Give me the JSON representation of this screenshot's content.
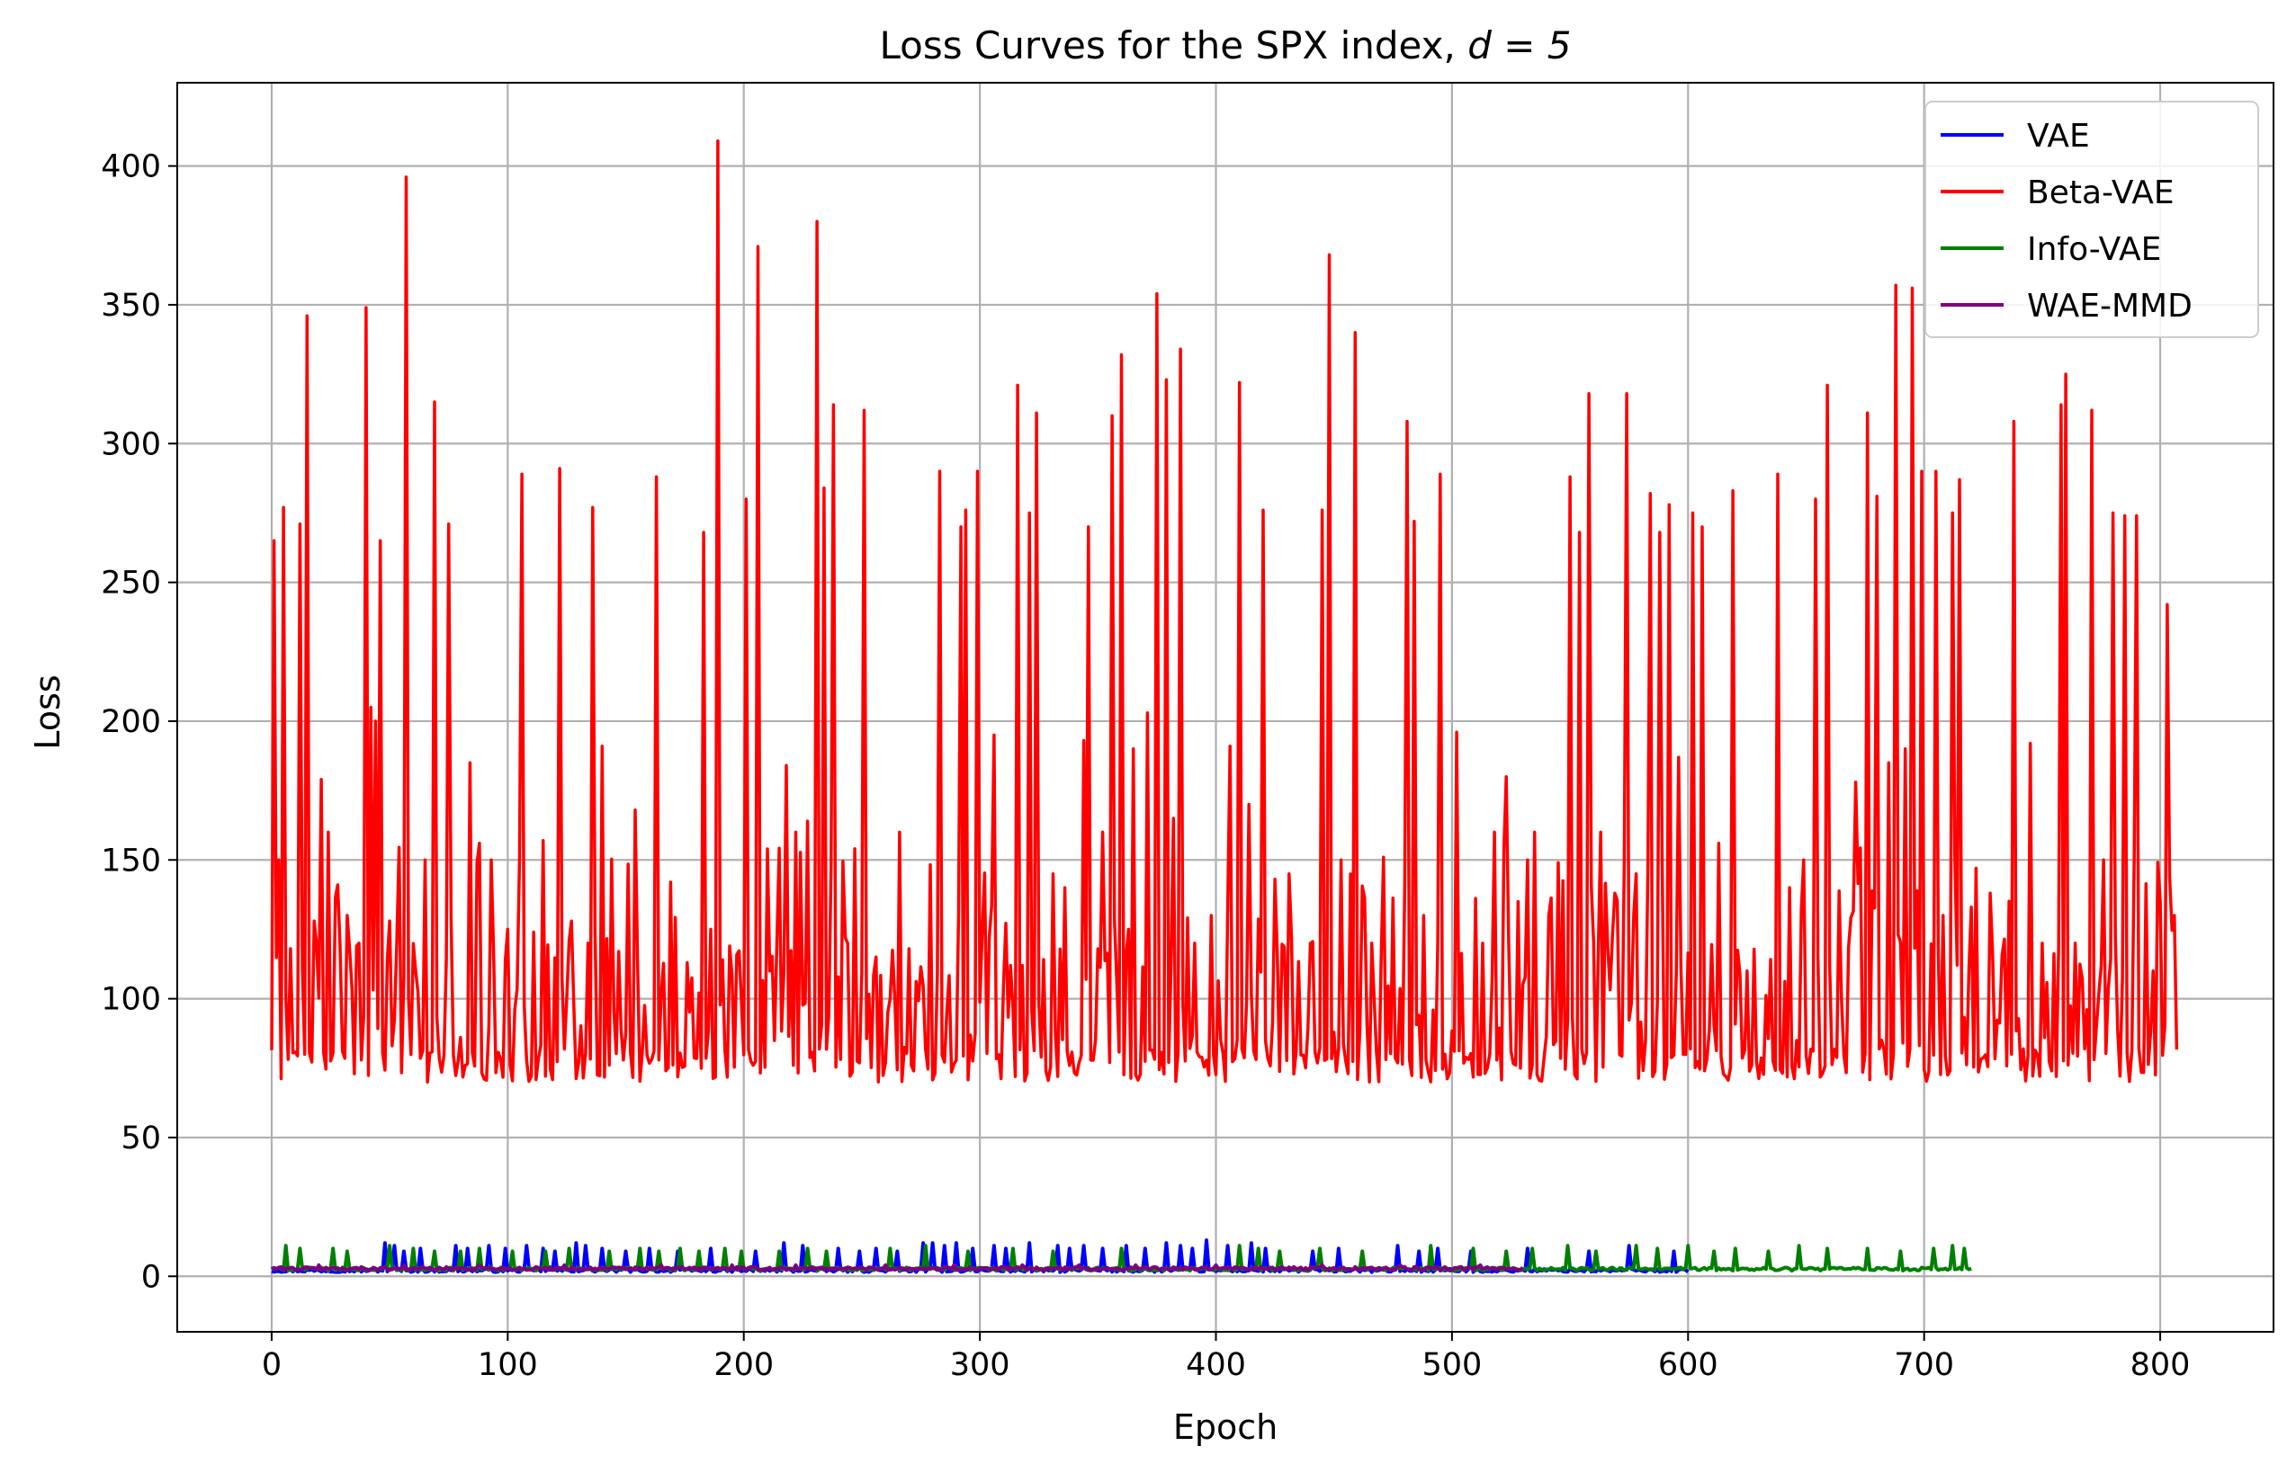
{
  "chart_data": {
    "type": "line",
    "title": "Loss Curves for the SPX index, ",
    "title_math": "d = 5",
    "xlabel": "Epoch",
    "ylabel": "Loss",
    "xlim": [
      -40,
      848
    ],
    "ylim": [
      -20,
      430
    ],
    "xticks": [
      0,
      100,
      200,
      300,
      400,
      500,
      600,
      700,
      800
    ],
    "yticks": [
      0,
      50,
      100,
      150,
      200,
      250,
      300,
      350,
      400
    ],
    "grid": true,
    "legend_position": "top-right",
    "series": [
      {
        "name": "VAE",
        "color": "#0000ff",
        "x_end": 600,
        "baseline": 1.5,
        "spikes": [
          [
            48,
            12
          ],
          [
            52,
            11
          ],
          [
            56,
            9
          ],
          [
            63,
            10
          ],
          [
            78,
            11
          ],
          [
            83,
            10
          ],
          [
            92,
            11
          ],
          [
            99,
            10
          ],
          [
            108,
            11
          ],
          [
            115,
            10
          ],
          [
            120,
            9
          ],
          [
            129,
            12
          ],
          [
            133,
            11
          ],
          [
            140,
            10
          ],
          [
            150,
            9
          ],
          [
            160,
            10
          ],
          [
            172,
            9
          ],
          [
            186,
            10
          ],
          [
            205,
            9
          ],
          [
            217,
            12
          ],
          [
            225,
            11
          ],
          [
            240,
            10
          ],
          [
            249,
            9
          ],
          [
            256,
            10
          ],
          [
            265,
            9
          ],
          [
            276,
            12
          ],
          [
            280,
            12
          ],
          [
            285,
            11
          ],
          [
            290,
            12
          ],
          [
            297,
            10
          ],
          [
            306,
            11
          ],
          [
            311,
            10
          ],
          [
            321,
            12
          ],
          [
            333,
            11
          ],
          [
            338,
            10
          ],
          [
            344,
            11
          ],
          [
            352,
            10
          ],
          [
            362,
            11
          ],
          [
            370,
            10
          ],
          [
            379,
            12
          ],
          [
            385,
            11
          ],
          [
            390,
            10
          ],
          [
            396,
            13
          ],
          [
            405,
            11
          ],
          [
            415,
            12
          ],
          [
            421,
            10
          ],
          [
            441,
            9
          ],
          [
            452,
            10
          ],
          [
            477,
            11
          ],
          [
            486,
            9
          ],
          [
            494,
            10
          ],
          [
            508,
            9
          ],
          [
            532,
            10
          ],
          [
            558,
            9
          ],
          [
            575,
            11
          ],
          [
            594,
            9
          ]
        ]
      },
      {
        "name": "Beta-VAE",
        "color": "#ff0000",
        "x_end": 807,
        "baseline": 75,
        "spikes": [
          [
            1,
            265
          ],
          [
            3,
            150
          ],
          [
            5,
            277
          ],
          [
            8,
            118
          ],
          [
            12,
            271
          ],
          [
            15,
            346
          ],
          [
            18,
            128
          ],
          [
            21,
            179
          ],
          [
            24,
            160
          ],
          [
            28,
            141
          ],
          [
            32,
            130
          ],
          [
            37,
            120
          ],
          [
            40,
            349
          ],
          [
            42,
            205
          ],
          [
            44,
            200
          ],
          [
            46,
            265
          ],
          [
            50,
            128
          ],
          [
            57,
            396
          ],
          [
            61,
            110
          ],
          [
            65,
            150
          ],
          [
            69,
            315
          ],
          [
            75,
            271
          ],
          [
            80,
            86
          ],
          [
            84,
            185
          ],
          [
            88,
            156
          ],
          [
            93,
            150
          ],
          [
            100,
            125
          ],
          [
            106,
            289
          ],
          [
            111,
            124
          ],
          [
            115,
            157
          ],
          [
            122,
            291
          ],
          [
            127,
            128
          ],
          [
            134,
            120
          ],
          [
            136,
            277
          ],
          [
            140,
            191
          ],
          [
            147,
            117
          ],
          [
            154,
            168
          ],
          [
            163,
            288
          ],
          [
            169,
            142
          ],
          [
            176,
            113
          ],
          [
            183,
            268
          ],
          [
            186,
            125
          ],
          [
            189,
            409
          ],
          [
            194,
            119
          ],
          [
            201,
            280
          ],
          [
            206,
            371
          ],
          [
            214,
            120
          ],
          [
            218,
            184
          ],
          [
            222,
            160
          ],
          [
            227,
            164
          ],
          [
            231,
            380
          ],
          [
            234,
            284
          ],
          [
            238,
            314
          ],
          [
            244,
            120
          ],
          [
            247,
            154
          ],
          [
            251,
            312
          ],
          [
            256,
            115
          ],
          [
            262,
            100
          ],
          [
            266,
            160
          ],
          [
            270,
            118
          ],
          [
            283,
            290
          ],
          [
            292,
            270
          ],
          [
            294,
            276
          ],
          [
            299,
            290
          ],
          [
            306,
            195
          ],
          [
            313,
            112
          ],
          [
            316,
            321
          ],
          [
            321,
            275
          ],
          [
            324,
            311
          ],
          [
            331,
            145
          ],
          [
            336,
            140
          ],
          [
            344,
            193
          ],
          [
            346,
            270
          ],
          [
            352,
            160
          ],
          [
            356,
            310
          ],
          [
            360,
            332
          ],
          [
            365,
            190
          ],
          [
            371,
            203
          ],
          [
            375,
            354
          ],
          [
            379,
            323
          ],
          [
            382,
            165
          ],
          [
            385,
            334
          ],
          [
            391,
            120
          ],
          [
            398,
            130
          ],
          [
            406,
            191
          ],
          [
            410,
            322
          ],
          [
            414,
            170
          ],
          [
            420,
            276
          ],
          [
            431,
            145
          ],
          [
            440,
            120
          ],
          [
            445,
            276
          ],
          [
            448,
            368
          ],
          [
            453,
            150
          ],
          [
            459,
            340
          ],
          [
            466,
            120
          ],
          [
            471,
            151
          ],
          [
            481,
            308
          ],
          [
            484,
            272
          ],
          [
            488,
            130
          ],
          [
            495,
            289
          ],
          [
            502,
            196
          ],
          [
            513,
            120
          ],
          [
            518,
            160
          ],
          [
            523,
            180
          ],
          [
            528,
            135
          ],
          [
            532,
            150
          ],
          [
            535,
            160
          ],
          [
            541,
            130
          ],
          [
            545,
            149
          ],
          [
            550,
            288
          ],
          [
            554,
            268
          ],
          [
            558,
            318
          ],
          [
            563,
            160
          ],
          [
            569,
            138
          ],
          [
            574,
            318
          ],
          [
            578,
            145
          ],
          [
            584,
            282
          ],
          [
            588,
            268
          ],
          [
            592,
            278
          ],
          [
            596,
            187
          ],
          [
            602,
            275
          ],
          [
            606,
            270
          ],
          [
            613,
            156
          ],
          [
            619,
            283
          ],
          [
            625,
            110
          ],
          [
            638,
            289
          ],
          [
            643,
            140
          ],
          [
            649,
            150
          ],
          [
            654,
            280
          ],
          [
            659,
            321
          ],
          [
            665,
            100
          ],
          [
            671,
            178
          ],
          [
            676,
            311
          ],
          [
            680,
            281
          ],
          [
            685,
            185
          ],
          [
            688,
            357
          ],
          [
            692,
            190
          ],
          [
            695,
            356
          ],
          [
            699,
            290
          ],
          [
            705,
            290
          ],
          [
            708,
            130
          ],
          [
            712,
            275
          ],
          [
            715,
            287
          ],
          [
            722,
            147
          ],
          [
            728,
            138
          ],
          [
            738,
            308
          ],
          [
            745,
            192
          ],
          [
            750,
            120
          ],
          [
            758,
            314
          ],
          [
            760,
            325
          ],
          [
            764,
            120
          ],
          [
            771,
            312
          ],
          [
            776,
            150
          ],
          [
            780,
            275
          ],
          [
            785,
            274
          ],
          [
            790,
            274
          ],
          [
            797,
            110
          ],
          [
            800,
            135
          ],
          [
            803,
            242
          ],
          [
            806,
            130
          ]
        ]
      },
      {
        "name": "Info-VAE",
        "color": "#008000",
        "x_end": 720,
        "baseline": 2,
        "spikes": [
          [
            6,
            11
          ],
          [
            12,
            10
          ],
          [
            26,
            10
          ],
          [
            32,
            9
          ],
          [
            50,
            11
          ],
          [
            60,
            10
          ],
          [
            69,
            9
          ],
          [
            80,
            9
          ],
          [
            88,
            10
          ],
          [
            102,
            9
          ],
          [
            116,
            9
          ],
          [
            126,
            10
          ],
          [
            143,
            9
          ],
          [
            156,
            10
          ],
          [
            164,
            9
          ],
          [
            173,
            10
          ],
          [
            181,
            9
          ],
          [
            192,
            10
          ],
          [
            199,
            9
          ],
          [
            215,
            9
          ],
          [
            227,
            10
          ],
          [
            235,
            9
          ],
          [
            262,
            10
          ],
          [
            277,
            11
          ],
          [
            295,
            9
          ],
          [
            314,
            10
          ],
          [
            331,
            9
          ],
          [
            360,
            10
          ],
          [
            410,
            11
          ],
          [
            418,
            10
          ],
          [
            427,
            9
          ],
          [
            444,
            10
          ],
          [
            462,
            9
          ],
          [
            491,
            11
          ],
          [
            509,
            10
          ],
          [
            523,
            9
          ],
          [
            534,
            10
          ],
          [
            549,
            11
          ],
          [
            561,
            9
          ],
          [
            578,
            11
          ],
          [
            587,
            10
          ],
          [
            600,
            11
          ],
          [
            611,
            9
          ],
          [
            620,
            10
          ],
          [
            634,
            9
          ],
          [
            647,
            11
          ],
          [
            659,
            10
          ],
          [
            676,
            10
          ],
          [
            690,
            9
          ],
          [
            704,
            10
          ],
          [
            712,
            11
          ],
          [
            717,
            10
          ]
        ]
      },
      {
        "name": "WAE-MMD",
        "color": "#800080",
        "x_end": 530,
        "baseline": 2.2,
        "spikes": [
          [
            20,
            4
          ],
          [
            56,
            4
          ],
          [
            88,
            4
          ],
          [
            124,
            4
          ],
          [
            165,
            4
          ],
          [
            195,
            4
          ],
          [
            222,
            4
          ],
          [
            260,
            4
          ],
          [
            289,
            4
          ],
          [
            318,
            4
          ],
          [
            342,
            4
          ],
          [
            366,
            4
          ],
          [
            400,
            4
          ],
          [
            445,
            4
          ],
          [
            478,
            4
          ],
          [
            512,
            4
          ]
        ]
      }
    ]
  }
}
